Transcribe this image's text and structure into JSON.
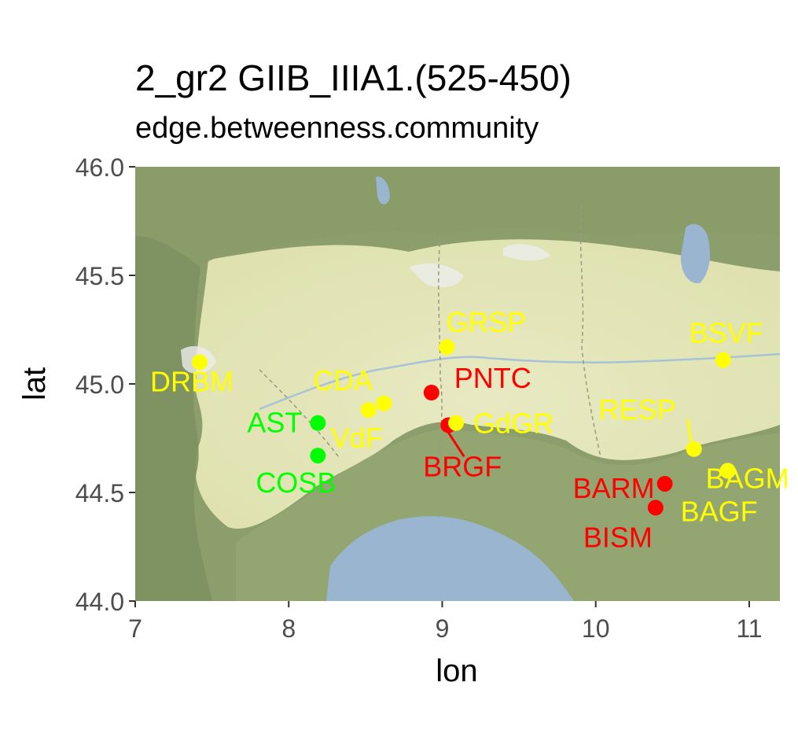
{
  "title": "2_gr2 GIIB_IIIA1.(525-450)",
  "subtitle": "edge.betweenness.community",
  "colors": {
    "red": "#ff0000",
    "yellow": "#ffff00",
    "green": "#00ff00",
    "sea": "#9ab5d0",
    "plain": "#e4e6b6",
    "mountain": "#8c9e6c"
  },
  "chart_data": {
    "type": "scatter",
    "xlabel": "lon",
    "ylabel": "lat",
    "xlim": [
      7,
      11.2
    ],
    "ylim": [
      44,
      46
    ],
    "xticks": [
      "7",
      "8",
      "9",
      "10",
      "11"
    ],
    "yticks": [
      "44.0",
      "44.5",
      "45.0",
      "45.5",
      "46.0"
    ],
    "grid": false,
    "basemap": "terrain",
    "points": [
      {
        "label": "DRBM",
        "lon": 7.42,
        "lat": 45.1,
        "group": "yellow"
      },
      {
        "label": "AST",
        "lon": 8.19,
        "lat": 44.82,
        "group": "green"
      },
      {
        "label": "COSB",
        "lon": 8.19,
        "lat": 44.67,
        "group": "green"
      },
      {
        "label": "CDA",
        "lon": 8.62,
        "lat": 44.91,
        "group": "yellow"
      },
      {
        "label": "VdF",
        "lon": 8.52,
        "lat": 44.88,
        "group": "yellow"
      },
      {
        "label": "GRSP",
        "lon": 9.03,
        "lat": 45.17,
        "group": "yellow"
      },
      {
        "label": "PNTC",
        "lon": 8.93,
        "lat": 44.96,
        "group": "red"
      },
      {
        "label": "BRGF",
        "lon": 9.04,
        "lat": 44.81,
        "group": "red"
      },
      {
        "label": "GdGR",
        "lon": 9.09,
        "lat": 44.82,
        "group": "yellow"
      },
      {
        "label": "BSVF",
        "lon": 10.83,
        "lat": 45.11,
        "group": "yellow"
      },
      {
        "label": "RESP",
        "lon": 10.64,
        "lat": 44.7,
        "group": "yellow"
      },
      {
        "label": "BAGM",
        "lon": 10.86,
        "lat": 44.6,
        "group": "yellow"
      },
      {
        "label": "BAGF",
        "lon": 10.86,
        "lat": 44.6,
        "group": "yellow"
      },
      {
        "label": "BARM",
        "lon": 10.45,
        "lat": 44.54,
        "group": "red"
      },
      {
        "label": "BISM",
        "lon": 10.39,
        "lat": 44.43,
        "group": "red"
      }
    ]
  }
}
